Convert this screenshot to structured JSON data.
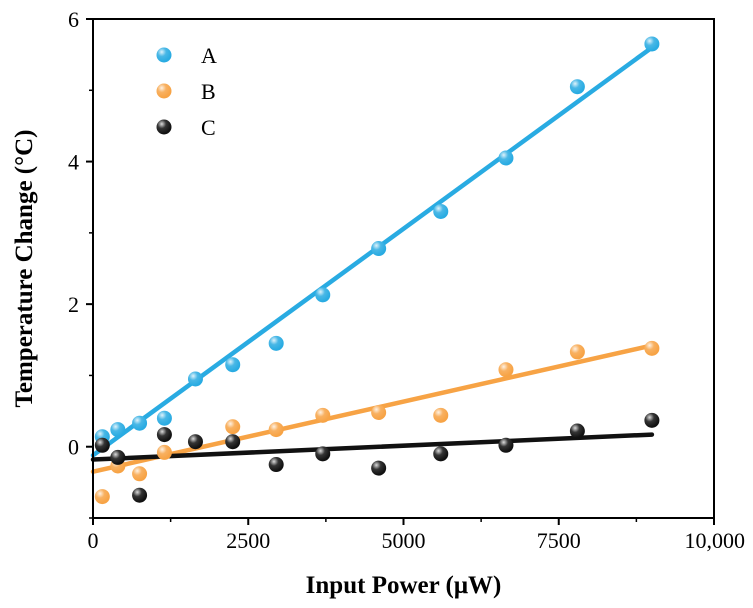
{
  "chart_data": {
    "type": "scatter",
    "title": "",
    "xlabel": "Input Power (μW)",
    "ylabel": "Temperature Change (°C)",
    "xlim": [
      0,
      10000
    ],
    "ylim": [
      -1,
      6
    ],
    "x_ticks": [
      0,
      2500,
      5000,
      7500,
      10000
    ],
    "x_tick_labels": [
      "0",
      "2500",
      "5000",
      "7500",
      "10,000"
    ],
    "y_ticks": [
      0,
      2,
      4,
      6
    ],
    "y_tick_labels": [
      "0",
      "2",
      "4",
      "6"
    ],
    "grid": false,
    "legend_position": "top-left",
    "series": [
      {
        "name": "A",
        "color": "#29abe2",
        "points": [
          {
            "x": 150,
            "y": 0.14
          },
          {
            "x": 400,
            "y": 0.24
          },
          {
            "x": 750,
            "y": 0.33
          },
          {
            "x": 1150,
            "y": 0.4
          },
          {
            "x": 1650,
            "y": 0.95
          },
          {
            "x": 2250,
            "y": 1.15
          },
          {
            "x": 2950,
            "y": 1.45
          },
          {
            "x": 3700,
            "y": 2.13
          },
          {
            "x": 4600,
            "y": 2.78
          },
          {
            "x": 5600,
            "y": 3.3
          },
          {
            "x": 6650,
            "y": 4.05
          },
          {
            "x": 7800,
            "y": 5.05
          },
          {
            "x": 9000,
            "y": 5.65
          }
        ],
        "fit": {
          "x": [
            0,
            9000
          ],
          "y": [
            -0.12,
            5.6
          ]
        }
      },
      {
        "name": "B",
        "color": "#f7a345",
        "points": [
          {
            "x": 150,
            "y": -0.7
          },
          {
            "x": 400,
            "y": -0.27
          },
          {
            "x": 750,
            "y": -0.38
          },
          {
            "x": 1150,
            "y": -0.08
          },
          {
            "x": 2250,
            "y": 0.28
          },
          {
            "x": 2950,
            "y": 0.24
          },
          {
            "x": 3700,
            "y": 0.44
          },
          {
            "x": 4600,
            "y": 0.48
          },
          {
            "x": 5600,
            "y": 0.44
          },
          {
            "x": 6650,
            "y": 1.08
          },
          {
            "x": 7800,
            "y": 1.33
          },
          {
            "x": 9000,
            "y": 1.38
          }
        ],
        "fit": {
          "x": [
            0,
            9000
          ],
          "y": [
            -0.35,
            1.42
          ]
        }
      },
      {
        "name": "C",
        "color": "#111111",
        "points": [
          {
            "x": 150,
            "y": 0.02
          },
          {
            "x": 400,
            "y": -0.15
          },
          {
            "x": 750,
            "y": -0.68
          },
          {
            "x": 1150,
            "y": 0.17
          },
          {
            "x": 1650,
            "y": 0.07
          },
          {
            "x": 2250,
            "y": 0.07
          },
          {
            "x": 2950,
            "y": -0.25
          },
          {
            "x": 3700,
            "y": -0.1
          },
          {
            "x": 4600,
            "y": -0.3
          },
          {
            "x": 5600,
            "y": -0.1
          },
          {
            "x": 6650,
            "y": 0.02
          },
          {
            "x": 7800,
            "y": 0.22
          },
          {
            "x": 9000,
            "y": 0.37
          }
        ],
        "fit": {
          "x": [
            0,
            9000
          ],
          "y": [
            -0.18,
            0.17
          ]
        }
      }
    ]
  }
}
